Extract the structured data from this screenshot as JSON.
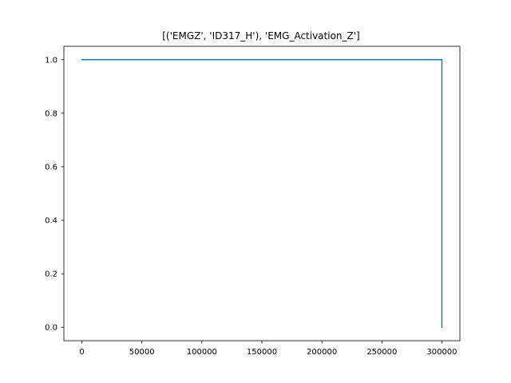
{
  "chart_data": {
    "type": "line",
    "title": "[('EMGZ', 'ID317_H'), 'EMG_Activation_Z']",
    "xlabel": "",
    "ylabel": "",
    "xlim": [
      -15000,
      315000
    ],
    "ylim": [
      -0.05,
      1.05
    ],
    "grid": false,
    "x_ticks": [
      0,
      50000,
      100000,
      150000,
      200000,
      250000,
      300000
    ],
    "x_tick_labels": [
      "0",
      "50000",
      "100000",
      "150000",
      "200000",
      "250000",
      "300000"
    ],
    "y_ticks": [
      0.0,
      0.2,
      0.4,
      0.6,
      0.8,
      1.0
    ],
    "y_tick_labels": [
      "0.0",
      "0.2",
      "0.4",
      "0.6",
      "0.8",
      "1.0"
    ],
    "series": [
      {
        "color": "#1f77b4",
        "x": [
          0,
          300000,
          300000
        ],
        "y": [
          1.0,
          1.0,
          0.0
        ]
      }
    ]
  }
}
